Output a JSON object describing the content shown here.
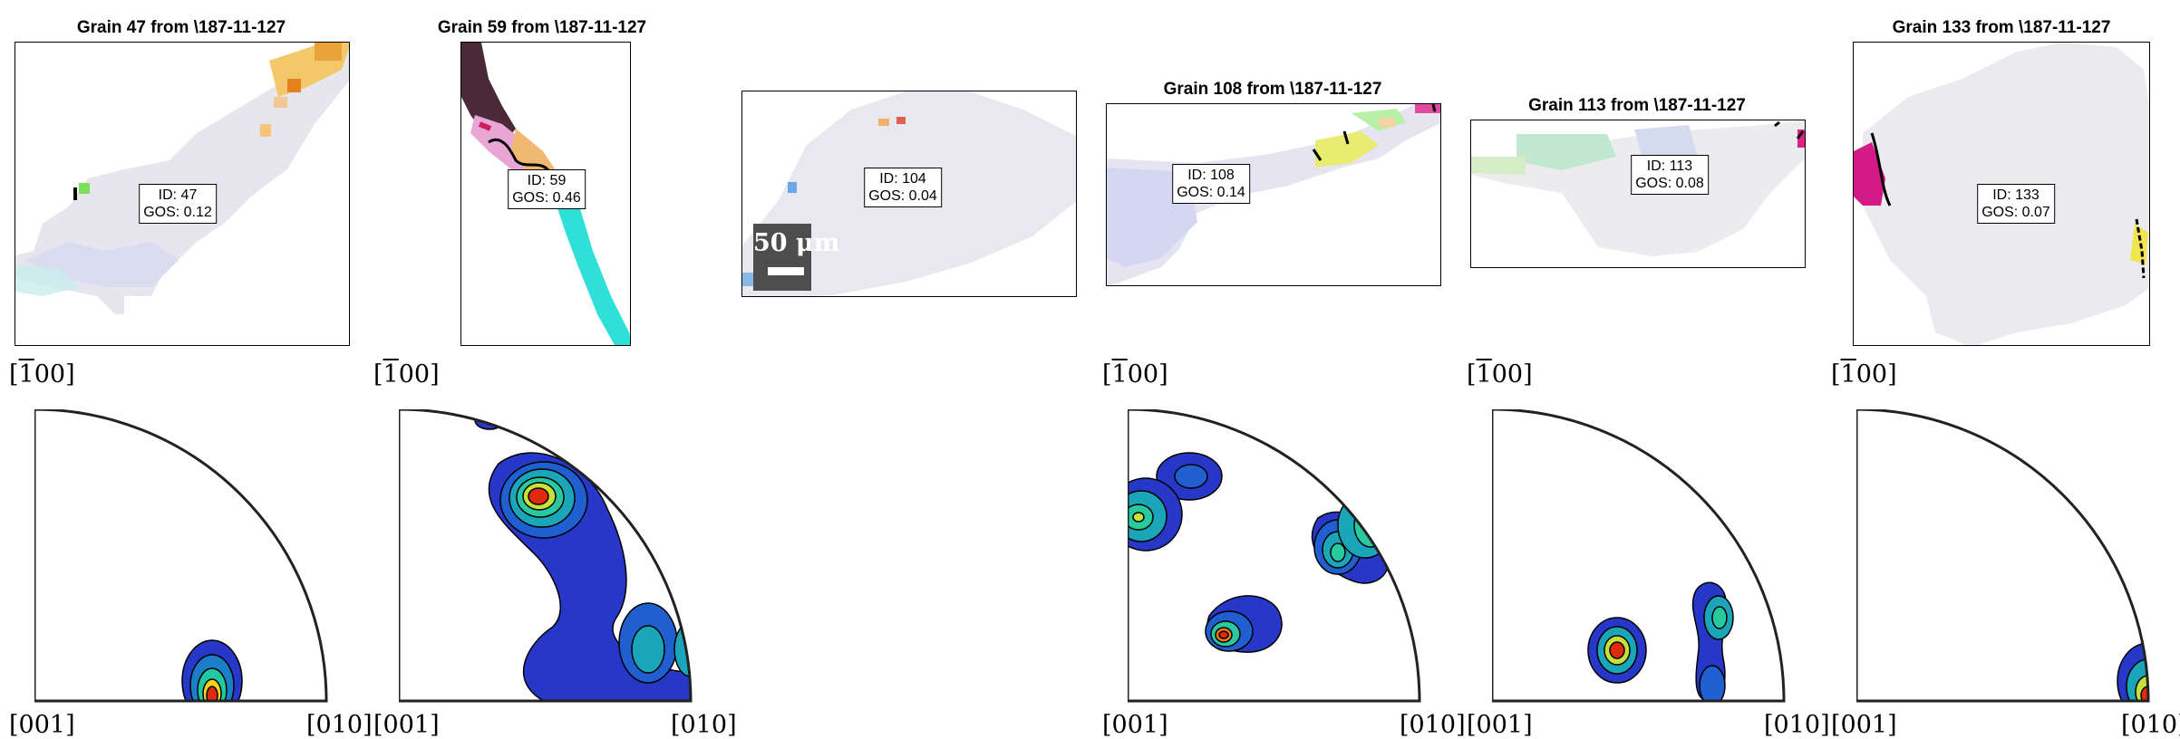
{
  "colors": {
    "frame": "#000000",
    "bg": "#ffffff",
    "scalebar_bg": "#4d4d4d"
  },
  "grains": [
    {
      "title": "Grain 47 from \\187-11-127",
      "id_text": "ID: 47",
      "gos_text": "GOS: 0.12"
    },
    {
      "title": "Grain 59 from \\187-11-127",
      "id_text": "ID: 59",
      "gos_text": "GOS: 0.46"
    },
    {
      "title": "",
      "id_text": "ID: 104",
      "gos_text": "GOS: 0.04"
    },
    {
      "title": "Grain 108 from \\187-11-127",
      "id_text": "ID: 108",
      "gos_text": "GOS: 0.14"
    },
    {
      "title": "Grain 113 from \\187-11-127",
      "id_text": "ID: 113",
      "gos_text": "GOS: 0.08"
    },
    {
      "title": "Grain 133 from \\187-11-127",
      "id_text": "ID: 133",
      "gos_text": "GOS: 0.07"
    }
  ],
  "scalebar": {
    "text": "50 μm"
  },
  "pole_figures": {
    "axis_top": "[100]",
    "axis_bottom_left": "[001]",
    "axis_bottom_right": "[010]",
    "colormap": [
      "#3347c8",
      "#1f6fd0",
      "#1aa6b8",
      "#29c9a0",
      "#6bd86a",
      "#c8e03a",
      "#f5c21e",
      "#f07a18",
      "#e02a10"
    ]
  }
}
